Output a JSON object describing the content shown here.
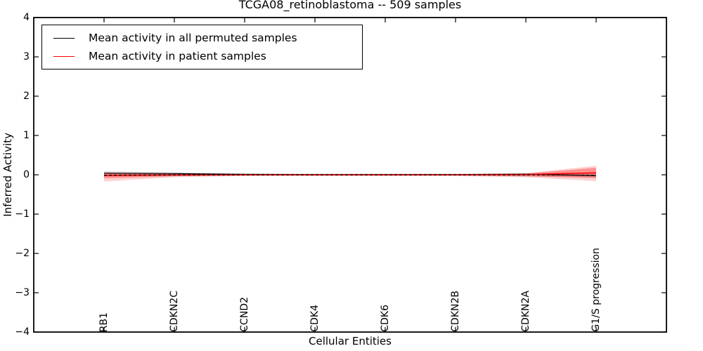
{
  "figure": {
    "title": "TCGA08_retinoblastoma -- 509 samples",
    "xlabel": "Cellular Entities",
    "ylabel": "Inferred Activity"
  },
  "legend": {
    "entries": [
      {
        "label": "Mean activity in all permuted samples",
        "color": "#000000"
      },
      {
        "label": "Mean activity in patient samples",
        "color": "#ff0000"
      }
    ]
  },
  "chart_data": {
    "type": "line",
    "title": "TCGA08_retinoblastoma -- 509 samples",
    "xlabel": "Cellular Entities",
    "ylabel": "Inferred Activity",
    "ylim": [
      -4,
      4
    ],
    "ytick_labels": [
      "4",
      "3",
      "2",
      "1",
      "0",
      "−1",
      "−2",
      "−3",
      "−4"
    ],
    "categories": [
      "RB1",
      "CDKN2C",
      "CCND2",
      "CDK4",
      "CDK6",
      "CDKN2B",
      "CDKN2A",
      "G1/S progression"
    ],
    "grid": false,
    "legend_position": "upper left",
    "series": [
      {
        "name": "Mean activity in all permuted samples",
        "color": "#000000",
        "style": "solid",
        "width": 1.2,
        "values": [
          0.04,
          0.03,
          0.01,
          0.005,
          0.005,
          0.005,
          0.015,
          -0.02
        ]
      },
      {
        "name": "Mean activity in patient samples",
        "color": "#ff0000",
        "style": "solid",
        "width": 1.5,
        "values": [
          -0.02,
          -0.005,
          0.0,
          0.0,
          0.0,
          0.0,
          0.005,
          0.05
        ]
      },
      {
        "name": "Zero reference (dashed)",
        "color": "#000000",
        "style": "dashed",
        "width": 1.2,
        "values": [
          -0.01,
          0.0,
          0.0,
          0.0,
          0.0,
          0.0,
          0.0,
          -0.01
        ]
      }
    ],
    "bands": [
      {
        "name": "permuted-samples-std",
        "color": "rgba(90,90,90,0.22)",
        "upper": [
          0.09,
          0.06,
          0.03,
          0.03,
          0.03,
          0.03,
          0.04,
          0.07
        ],
        "lower": [
          -0.04,
          -0.03,
          -0.02,
          -0.02,
          -0.02,
          -0.02,
          -0.04,
          -0.07
        ]
      },
      {
        "name": "patient-samples-std-outer",
        "color": "rgba(255,0,0,0.18)",
        "upper": [
          0.07,
          0.04,
          0.02,
          0.02,
          0.02,
          0.02,
          0.04,
          0.23
        ],
        "lower": [
          -0.17,
          -0.06,
          -0.03,
          -0.03,
          -0.03,
          -0.03,
          -0.06,
          -0.16
        ]
      },
      {
        "name": "patient-samples-std-inner",
        "color": "rgba(255,0,0,0.30)",
        "upper": [
          0.045,
          0.03,
          0.015,
          0.015,
          0.015,
          0.015,
          0.03,
          0.18
        ],
        "lower": [
          -0.09,
          -0.04,
          -0.02,
          -0.02,
          -0.02,
          -0.02,
          -0.04,
          -0.08
        ]
      }
    ]
  }
}
